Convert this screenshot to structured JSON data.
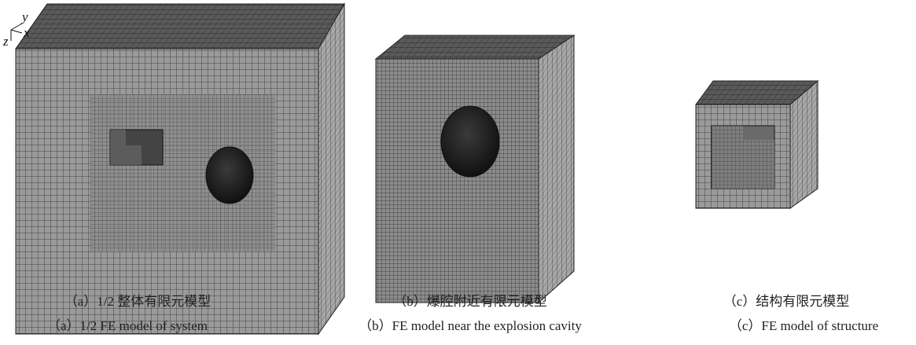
{
  "axes": {
    "y": "y",
    "x": "x",
    "z": "z"
  },
  "panels": [
    {
      "caption_zh": "（a）1/2 整体有限元模型",
      "caption_en": "（a）1/2 FE model of system"
    },
    {
      "caption_zh": "（b）爆腔附近有限元模型",
      "caption_en": "（b）FE model near the explosion cavity"
    },
    {
      "caption_zh": "（c）结构有限元模型",
      "caption_en": "（c）FE model of structure"
    }
  ]
}
